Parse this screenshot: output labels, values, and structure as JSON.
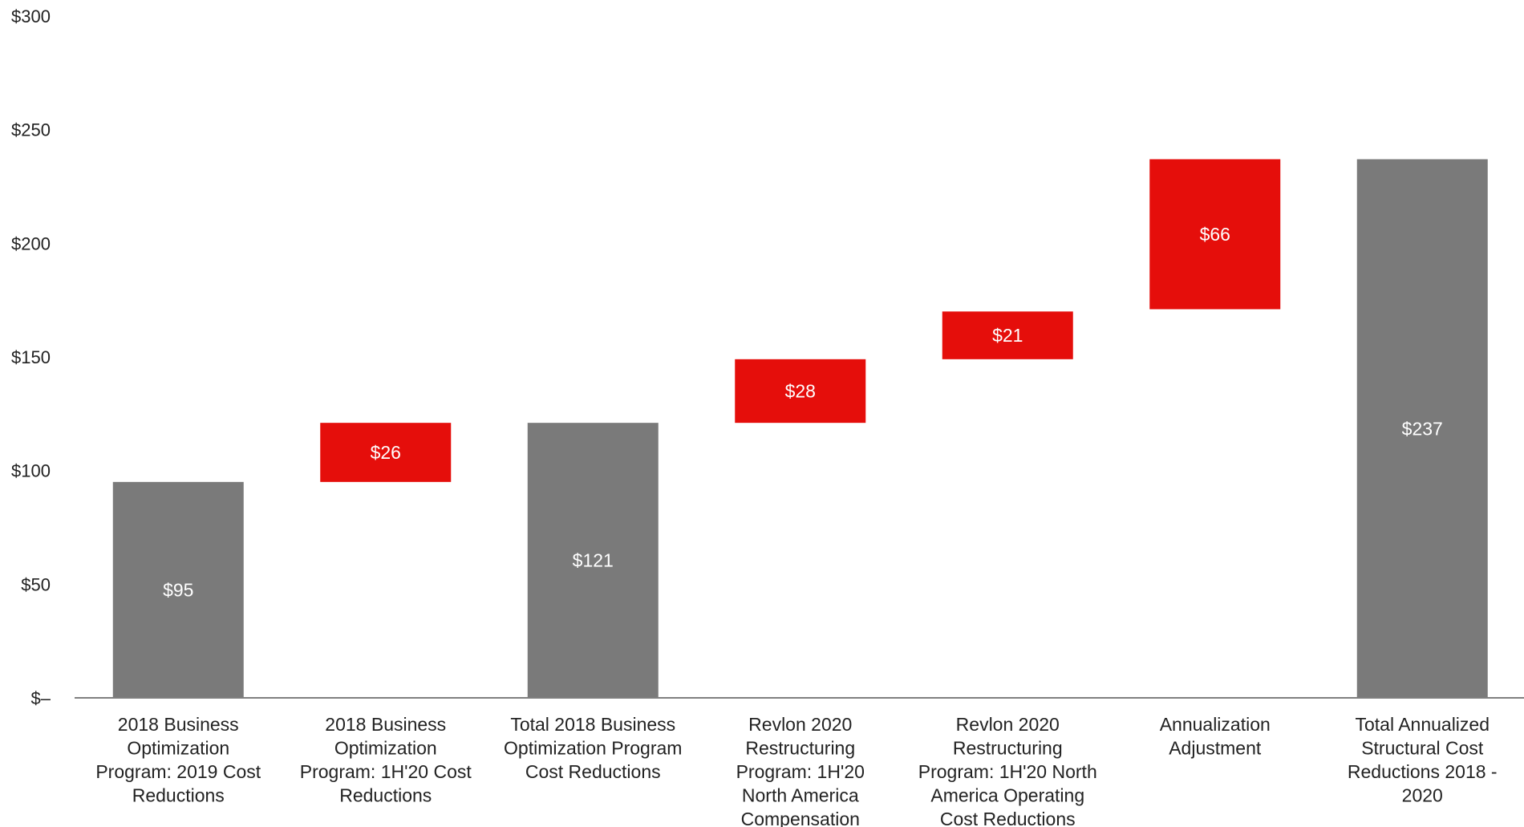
{
  "chart_data": {
    "type": "bar",
    "subtype": "waterfall",
    "title": "",
    "xlabel": "",
    "ylabel": "",
    "ylim": [
      0,
      300
    ],
    "yticks": [
      {
        "value": 0,
        "label": "$–"
      },
      {
        "value": 50,
        "label": "$50"
      },
      {
        "value": 100,
        "label": "$100"
      },
      {
        "value": 150,
        "label": "$150"
      },
      {
        "value": 200,
        "label": "$200"
      },
      {
        "value": 250,
        "label": "$250"
      },
      {
        "value": 300,
        "label": "$300"
      }
    ],
    "grid": false,
    "legend": "none",
    "colors": {
      "total": "#7a7a7a",
      "increment": "#e50e0b",
      "axis": "#7f7f7f"
    },
    "bars": [
      {
        "category": [
          "2018 Business",
          "Optimization",
          "Program: 2019 Cost",
          "Reductions"
        ],
        "kind": "total",
        "base": 0,
        "value": 95,
        "label": "$95"
      },
      {
        "category": [
          "2018 Business",
          "Optimization",
          "Program: 1H'20 Cost",
          "Reductions"
        ],
        "kind": "increment",
        "base": 95,
        "value": 26,
        "label": "$26"
      },
      {
        "category": [
          "Total 2018 Business",
          "Optimization Program",
          "Cost Reductions"
        ],
        "kind": "total",
        "base": 0,
        "value": 121,
        "label": "$121"
      },
      {
        "category": [
          "Revlon 2020",
          "Restructuring",
          "Program: 1H'20",
          "North America",
          "Compensation"
        ],
        "kind": "increment",
        "base": 121,
        "value": 28,
        "label": "$28"
      },
      {
        "category": [
          "Revlon 2020",
          "Restructuring",
          "Program: 1H'20 North",
          "America Operating",
          "Cost Reductions"
        ],
        "kind": "increment",
        "base": 149,
        "value": 21,
        "label": "$21"
      },
      {
        "category": [
          "Annualization",
          "Adjustment"
        ],
        "kind": "increment",
        "base": 171,
        "value": 66,
        "label": "$66"
      },
      {
        "category": [
          "Total Annualized",
          "Structural Cost",
          "Reductions 2018 -",
          "2020"
        ],
        "kind": "total",
        "base": 0,
        "value": 237,
        "label": "$237"
      }
    ]
  }
}
